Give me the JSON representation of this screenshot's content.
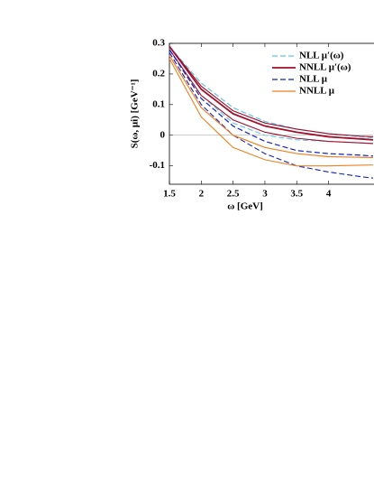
{
  "chart_data": {
    "type": "line",
    "x_label": "ω [GeV]",
    "y_label": "S(ω, μi) [GeV⁻¹]",
    "x": [
      1.5,
      2,
      2.5,
      3,
      3.5,
      4,
      4.5,
      4.7
    ],
    "xlim": [
      1.5,
      4.7
    ],
    "ylim": [
      -0.16,
      0.3
    ],
    "xticks": [
      1.5,
      2,
      2.5,
      3,
      3.5,
      4
    ],
    "yticks": [
      0.3,
      0.2,
      0.1,
      0,
      -0.1
    ],
    "zero_line": true,
    "legend": "upper right",
    "series": [
      {
        "name": "NLL μ′(ω)",
        "color": "#5bc8e8",
        "dashed": true,
        "width": 1.2,
        "curves": [
          [
            0.29,
            0.17,
            0.09,
            0.045,
            0.02,
            0.005,
            -0.005,
            -0.008
          ],
          [
            0.28,
            0.13,
            0.04,
            0.0,
            -0.015,
            -0.02,
            -0.025,
            -0.027
          ]
        ]
      },
      {
        "name": "NNLL μ′(ω)",
        "color": "#a0102a",
        "dashed": false,
        "width": 1.8,
        "curves": [
          [
            0.29,
            0.15,
            0.07,
            0.03,
            0.01,
            -0.005,
            -0.012,
            -0.015
          ],
          [
            0.29,
            0.16,
            0.08,
            0.04,
            0.02,
            0.005,
            -0.003,
            -0.005
          ],
          [
            0.28,
            0.13,
            0.05,
            0.01,
            -0.01,
            -0.02,
            -0.025,
            -0.027
          ]
        ]
      },
      {
        "name": "NLL μ",
        "color": "#1020c8",
        "dashed": true,
        "width": 1.2,
        "curves": [
          [
            0.28,
            0.12,
            0.03,
            -0.02,
            -0.05,
            -0.06,
            -0.065,
            -0.068
          ],
          [
            0.27,
            0.1,
            0.0,
            -0.06,
            -0.1,
            -0.12,
            -0.135,
            -0.14
          ]
        ]
      },
      {
        "name": "NNLL μ",
        "color": "#f08020",
        "dashed": false,
        "width": 1.2,
        "curves": [
          [
            0.26,
            0.09,
            0.0,
            -0.04,
            -0.06,
            -0.07,
            -0.072,
            -0.073
          ],
          [
            0.25,
            0.06,
            -0.04,
            -0.08,
            -0.1,
            -0.1,
            -0.098,
            -0.097
          ]
        ]
      }
    ]
  }
}
